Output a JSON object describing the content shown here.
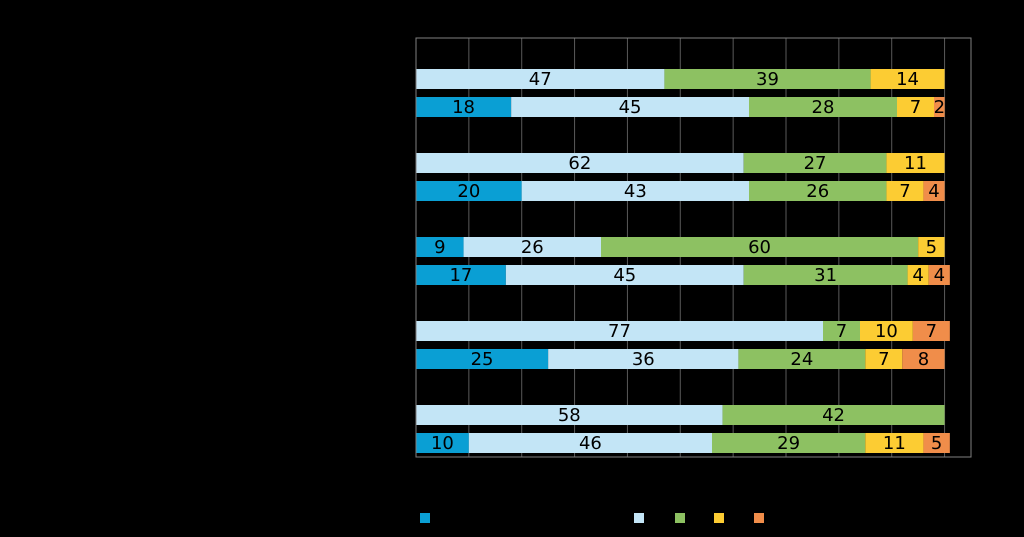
{
  "chart_data": {
    "type": "bar",
    "orientation": "horizontal",
    "stacked": true,
    "normalized": true,
    "xlim": [
      0,
      105
    ],
    "grid": true,
    "legend": "bottom",
    "rows": [
      {
        "group": 0,
        "values": [
          0,
          47,
          39,
          14,
          0
        ]
      },
      {
        "group": 0,
        "values": [
          18,
          45,
          28,
          7,
          2
        ]
      },
      {
        "group": 1,
        "values": [
          0,
          62,
          27,
          11,
          0
        ]
      },
      {
        "group": 1,
        "values": [
          20,
          43,
          26,
          7,
          4
        ]
      },
      {
        "group": 2,
        "values": [
          9,
          26,
          60,
          5,
          0
        ]
      },
      {
        "group": 2,
        "values": [
          17,
          45,
          31,
          4,
          4
        ]
      },
      {
        "group": 3,
        "values": [
          0,
          77,
          7,
          10,
          7
        ]
      },
      {
        "group": 3,
        "values": [
          25,
          36,
          24,
          7,
          8
        ]
      },
      {
        "group": 4,
        "values": [
          0,
          58,
          42,
          0,
          0
        ]
      },
      {
        "group": 4,
        "values": [
          10,
          46,
          29,
          11,
          5
        ]
      }
    ],
    "series_colors": [
      "#0a9fd4",
      "#c3e5f6",
      "#8dc162",
      "#fccc33",
      "#f08d4a"
    ]
  }
}
